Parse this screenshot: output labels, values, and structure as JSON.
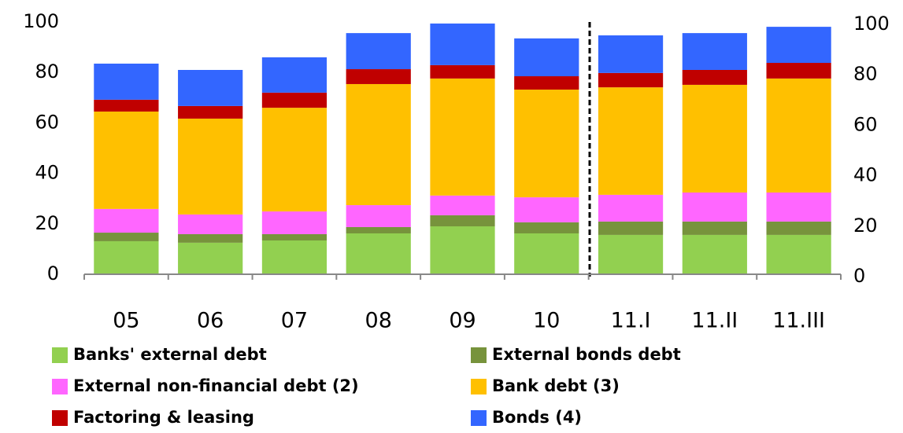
{
  "chart_data": {
    "type": "stacked_bar",
    "categories": [
      "05",
      "06",
      "07",
      "08",
      "09",
      "10",
      "11.I",
      "11.II",
      "11.III"
    ],
    "series": [
      {
        "name": "Banks' external debt",
        "color": "#92d050",
        "values": [
          13.1,
          12.5,
          13.4,
          16.2,
          19.0,
          16.2,
          15.6,
          15.6,
          15.6
        ]
      },
      {
        "name": "External bonds debt",
        "color": "#77933c",
        "values": [
          3.4,
          3.4,
          2.5,
          2.5,
          4.4,
          4.4,
          5.3,
          5.3,
          5.3
        ]
      },
      {
        "name": "External non-financial debt (2)",
        "color": "#ff66ff",
        "values": [
          9.4,
          7.8,
          9.0,
          8.7,
          7.8,
          9.9,
          10.6,
          11.5,
          11.5
        ]
      },
      {
        "name": "Bank debt (3)",
        "color": "#ffc000",
        "values": [
          38.6,
          38.0,
          41.1,
          48.0,
          46.4,
          42.7,
          42.6,
          42.7,
          45.2
        ]
      },
      {
        "name": "Factoring & leasing",
        "color": "#c00000",
        "values": [
          4.7,
          5.0,
          6.0,
          5.9,
          5.3,
          5.3,
          5.7,
          5.9,
          6.2
        ]
      },
      {
        "name": "Bonds (4)",
        "color": "#3366ff",
        "values": [
          14.3,
          14.3,
          14.0,
          14.3,
          16.5,
          15.0,
          14.9,
          14.6,
          14.3
        ]
      }
    ],
    "ylim": [
      0,
      100
    ],
    "yticks": [
      0,
      20,
      40,
      60,
      80,
      100
    ],
    "y2lim": [
      0,
      100
    ],
    "y2ticks": [
      0,
      20,
      40,
      60,
      80,
      100
    ]
  }
}
